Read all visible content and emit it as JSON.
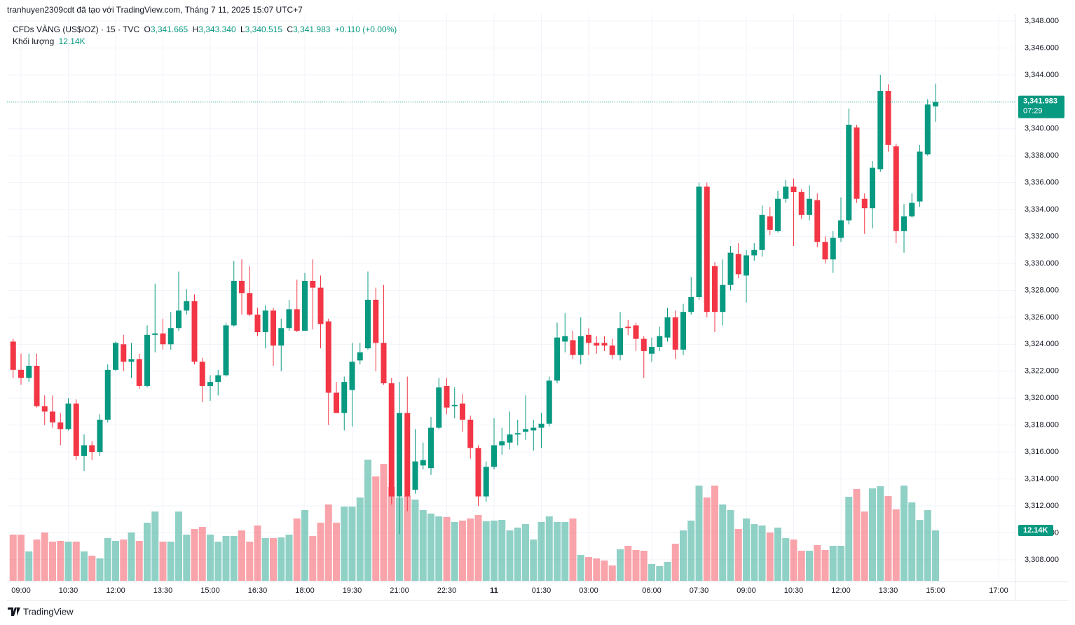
{
  "header": {
    "attribution": "tranhuyen2309cdt đã tạo với TradingView.com, Tháng 7 11, 2025 15:07 UTC+7"
  },
  "legend": {
    "symbol": "CFDs VÀNG (US$/OZ) · 15 · TVC",
    "o": "O",
    "open": "3,341.665",
    "h": "H",
    "high": "3,343.340",
    "l": "L",
    "low": "3,340.515",
    "c": "C",
    "close": "3,341.983",
    "change": "+0.110 (+0.00%)",
    "volume_title": "Khối lượng",
    "volume": "12.14K"
  },
  "footer": {
    "brand": "TradingView"
  },
  "chart_data": {
    "type": "candlestick",
    "up_color": "#089981",
    "down_color": "#f23645",
    "grid": true,
    "last_price_label": "3,341.983",
    "countdown": "07:29",
    "volume_label": "12.14K",
    "ylim": [
      3306.38,
      3348.52
    ],
    "yticks": [
      {
        "value": 3308,
        "label": "3,308.000"
      },
      {
        "value": 3310,
        "label": "3,310.000"
      },
      {
        "value": 3312,
        "label": "3,312.000"
      },
      {
        "value": 3314,
        "label": "3,314.000"
      },
      {
        "value": 3316,
        "label": "3,316.000"
      },
      {
        "value": 3318,
        "label": "3,318.000"
      },
      {
        "value": 3320,
        "label": "3,320.000"
      },
      {
        "value": 3322,
        "label": "3,322.000"
      },
      {
        "value": 3324,
        "label": "3,324.000"
      },
      {
        "value": 3326,
        "label": "3,326.000"
      },
      {
        "value": 3328,
        "label": "3,328.000"
      },
      {
        "value": 3330,
        "label": "3,330.000"
      },
      {
        "value": 3332,
        "label": "3,332.000"
      },
      {
        "value": 3334,
        "label": "3,334.000"
      },
      {
        "value": 3336,
        "label": "3,336.000"
      },
      {
        "value": 3338,
        "label": "3,338.000"
      },
      {
        "value": 3340,
        "label": "3,340.000"
      },
      {
        "value": 3342,
        "label": "3,342.000"
      },
      {
        "value": 3344,
        "label": "3,344.000"
      },
      {
        "value": 3346,
        "label": "3,346.000"
      },
      {
        "value": 3348,
        "label": "3,348.000"
      }
    ],
    "volume_ylim": [
      0,
      136.4
    ],
    "categories": [
      null,
      "09:00",
      null,
      null,
      null,
      null,
      null,
      "10:30",
      null,
      null,
      null,
      null,
      null,
      "12:00",
      null,
      null,
      null,
      null,
      null,
      "13:30",
      null,
      null,
      null,
      null,
      null,
      "15:00",
      null,
      null,
      null,
      null,
      null,
      "16:30",
      null,
      null,
      null,
      null,
      null,
      "18:00",
      null,
      null,
      null,
      null,
      null,
      "19:30",
      null,
      null,
      null,
      null,
      null,
      "21:00",
      null,
      null,
      null,
      null,
      null,
      "22:30",
      null,
      null,
      null,
      null,
      null,
      "11",
      null,
      null,
      null,
      null,
      null,
      "01:30",
      null,
      null,
      null,
      null,
      null,
      "03:00",
      null,
      null,
      null,
      null,
      null,
      null,
      null,
      "06:00",
      null,
      null,
      null,
      null,
      null,
      "07:30",
      null,
      null,
      null,
      null,
      null,
      "09:00",
      null,
      null,
      null,
      null,
      null,
      "10:30",
      null,
      null,
      null,
      null,
      null,
      "12:00",
      null,
      null,
      null,
      null,
      null,
      "13:30",
      null,
      null,
      null,
      null,
      null,
      "15:00",
      null,
      null,
      null,
      null,
      null,
      null,
      null,
      "17:00"
    ],
    "open": [
      3324.2,
      3322.1,
      3321.5,
      3322.4,
      3319.4,
      3319.0,
      3318.2,
      3317.7,
      3319.6,
      3315.7,
      3316.5,
      3316.0,
      3318.4,
      3322.1,
      3324.0,
      3322.7,
      3322.9,
      3320.9,
      3324.7,
      3324.8,
      3324.0,
      3325.2,
      3326.5,
      3327.2,
      3322.7,
      3320.9,
      3321.2,
      3321.7,
      3325.4,
      3328.7,
      3327.8,
      3326.2,
      3324.9,
      3326.5,
      3323.9,
      3325.2,
      3326.6,
      3325.0,
      3328.7,
      3328.2,
      3325.7,
      3320.4,
      3318.9,
      3320.6,
      3322.8,
      3323.7,
      3327.3,
      3324.1,
      3321.1,
      3312.7,
      3318.9,
      3313.2,
      3315.0,
      3314.8,
      3317.8,
      3320.9,
      3319.4,
      3319.6,
      3318.4,
      3316.3,
      3312.7,
      3314.9,
      3316.5,
      3316.7,
      3317.3,
      3317.5,
      3317.6,
      3317.8,
      3318.1,
      3321.3,
      3324.2,
      3324.3,
      3323.2,
      3324.7,
      3324.1,
      3324.1,
      3323.9,
      3323.2,
      3325.3,
      3325.4,
      3324.4,
      3323.3,
      3323.8,
      3324.5,
      3326.0,
      3323.6,
      3326.4,
      3327.5,
      3335.7,
      3329.8,
      3326.4,
      3328.4,
      3330.7,
      3329.1,
      3330.6,
      3331.0,
      3333.5,
      3332.4,
      3334.8,
      3335.7,
      3335.3,
      3333.6,
      3334.7,
      3331.6,
      3330.3,
      3331.9,
      3333.2,
      3340.1,
      3334.8,
      3334.1,
      3337.0,
      3342.8,
      3338.7,
      3332.4,
      3333.5,
      3334.6,
      3338.1,
      3341.665,
      null,
      null,
      null,
      null,
      null,
      null,
      null,
      null
    ],
    "high": [
      3324.4,
      3323.3,
      3323.3,
      3323.3,
      3320.2,
      3320.2,
      3318.9,
      3320.0,
      3319.9,
      3317.3,
      3316.8,
      3318.8,
      3322.5,
      3324.2,
      3324.7,
      3324.1,
      3323.3,
      3325.4,
      3328.5,
      3325.9,
      3326.4,
      3329.4,
      3328.1,
      3327.7,
      3323.0,
      3321.7,
      3322.1,
      3325.6,
      3330.2,
      3330.3,
      3329.8,
      3326.7,
      3326.9,
      3326.7,
      3325.9,
      3327.3,
      3328.8,
      3329.3,
      3330.3,
      3329.1,
      3325.9,
      3321.2,
      3321.6,
      3324.1,
      3324.1,
      3329.4,
      3328.2,
      3328.4,
      3321.5,
      3321.2,
      3321.6,
      3317.7,
      3316.7,
      3318.6,
      3321.5,
      3321.5,
      3320.8,
      3320.3,
      3318.7,
      3316.5,
      3315.3,
      3318.5,
      3317.8,
      3319.0,
      3318.4,
      3320.2,
      3318.4,
      3318.9,
      3321.6,
      3325.6,
      3326.3,
      3325.0,
      3326.0,
      3325.2,
      3324.6,
      3324.6,
      3324.4,
      3326.4,
      3325.8,
      3325.6,
      3324.6,
      3324.5,
      3325.3,
      3326.7,
      3326.5,
      3327.0,
      3329.0,
      3336.0,
      3336.0,
      3330.1,
      3330.3,
      3331.3,
      3331.5,
      3331.0,
      3331.5,
      3334.3,
      3334.2,
      3335.4,
      3336.2,
      3336.3,
      3335.5,
      3335.8,
      3335.2,
      3332.0,
      3332.4,
      3334.9,
      3341.5,
      3340.3,
      3335.2,
      3337.6,
      3344.0,
      3343.3,
      3338.9,
      3334.4,
      3335.2,
      3338.8,
      3342.2,
      3343.34,
      null,
      null,
      null,
      null,
      null,
      null,
      null,
      null
    ],
    "low": [
      3321.5,
      3321.0,
      3321.2,
      3319.3,
      3318.0,
      3317.8,
      3316.5,
      3317.6,
      3315.4,
      3314.6,
      3315.4,
      3315.7,
      3318.2,
      3322.0,
      3322.0,
      3321.5,
      3320.7,
      3320.8,
      3323.4,
      3323.6,
      3323.6,
      3325.0,
      3326.2,
      3322.5,
      3319.7,
      3319.8,
      3320.2,
      3321.6,
      3325.3,
      3326.2,
      3326.1,
      3324.6,
      3323.7,
      3322.4,
      3322.0,
      3325.0,
      3324.9,
      3325.0,
      3325.1,
      3323.7,
      3318.0,
      3318.9,
      3317.6,
      3317.9,
      3322.5,
      3323.6,
      3322.0,
      3321.0,
      3312.1,
      3309.9,
      3311.6,
      3312.9,
      3314.7,
      3314.3,
      3317.7,
      3318.8,
      3318.5,
      3317.5,
      3315.5,
      3312.0,
      3312.3,
      3314.7,
      3315.8,
      3316.2,
      3316.5,
      3316.9,
      3316.1,
      3316.3,
      3317.9,
      3321.1,
      3323.4,
      3322.9,
      3322.5,
      3323.2,
      3323.3,
      3323.5,
      3322.9,
      3322.8,
      3324.7,
      3323.5,
      3321.5,
      3322.7,
      3323.5,
      3324.2,
      3322.9,
      3323.2,
      3326.2,
      3327.3,
      3326.0,
      3324.9,
      3325.4,
      3328.0,
      3328.9,
      3327.1,
      3330.2,
      3330.5,
      3332.1,
      3332.3,
      3334.5,
      3331.3,
      3333.3,
      3333.2,
      3331.2,
      3330.0,
      3329.3,
      3331.6,
      3332.9,
      3334.5,
      3332.2,
      3332.6,
      3336.8,
      3338.3,
      3331.5,
      3330.8,
      3333.4,
      3334.2,
      3338.0,
      3340.515,
      null,
      null,
      null,
      null,
      null,
      null,
      null,
      null
    ],
    "close": [
      3322.1,
      3321.5,
      3322.4,
      3319.4,
      3319.0,
      3318.2,
      3317.7,
      3319.6,
      3315.7,
      3316.5,
      3316.0,
      3318.4,
      3322.1,
      3324.1,
      3322.7,
      3322.9,
      3320.9,
      3324.7,
      3324.8,
      3324.0,
      3325.2,
      3326.5,
      3327.2,
      3322.7,
      3320.9,
      3321.2,
      3321.7,
      3325.4,
      3328.7,
      3327.8,
      3326.2,
      3324.9,
      3326.5,
      3323.9,
      3325.2,
      3326.6,
      3325.0,
      3328.7,
      3328.2,
      3325.5,
      3320.4,
      3318.9,
      3321.2,
      3322.7,
      3323.4,
      3327.3,
      3324.1,
      3321.1,
      3312.7,
      3318.9,
      3312.7,
      3315.3,
      3315.4,
      3317.8,
      3320.8,
      3319.3,
      3319.5,
      3318.4,
      3316.3,
      3312.7,
      3314.9,
      3316.5,
      3316.8,
      3317.3,
      3317.4,
      3317.7,
      3317.8,
      3318.1,
      3321.3,
      3324.5,
      3324.6,
      3323.2,
      3324.6,
      3324.1,
      3323.9,
      3323.9,
      3323.2,
      3325.2,
      3325.2,
      3324.4,
      3323.5,
      3323.8,
      3324.6,
      3326.0,
      3323.6,
      3326.4,
      3327.5,
      3335.7,
      3326.4,
      3326.4,
      3328.4,
      3330.8,
      3329.2,
      3330.6,
      3331.0,
      3333.6,
      3332.5,
      3334.8,
      3335.7,
      3335.3,
      3333.6,
      3334.8,
      3331.6,
      3330.3,
      3331.9,
      3333.2,
      3340.3,
      3334.8,
      3334.1,
      3337.1,
      3342.8,
      3338.8,
      3332.4,
      3333.5,
      3334.5,
      3338.3,
      3341.8,
      3341.983,
      null,
      null,
      null,
      null,
      null,
      null,
      null,
      null
    ],
    "volume": [
      11.13,
      11.13,
      7.08,
      9.95,
      11.64,
      9.44,
      9.61,
      9.44,
      9.44,
      7.08,
      6.07,
      5.4,
      10.29,
      9.61,
      9.95,
      11.64,
      9.61,
      14.0,
      16.69,
      9.44,
      9.44,
      16.69,
      11.13,
      12.48,
      12.98,
      11.13,
      9.44,
      10.79,
      10.79,
      12.14,
      9.44,
      13.32,
      10.29,
      10.29,
      10.46,
      11.13,
      15.01,
      17.03,
      10.79,
      14.0,
      18.38,
      14.0,
      17.88,
      17.88,
      20.07,
      29.17,
      25.13,
      28.16,
      22.6,
      20.07,
      20.4,
      19.56,
      17.03,
      16.19,
      15.51,
      15.35,
      14.17,
      14.5,
      15.01,
      15.85,
      14.33,
      14.5,
      14.67,
      12.14,
      12.82,
      13.66,
      9.95,
      14.17,
      15.51,
      14.17,
      14.17,
      15.01,
      6.24,
      5.73,
      5.4,
      4.89,
      3.71,
      7.59,
      8.43,
      7.42,
      7.25,
      4.05,
      3.54,
      4.55,
      8.94,
      12.14,
      14.5,
      22.93,
      20.07,
      22.93,
      18.38,
      17.03,
      12.48,
      15.01,
      13.66,
      13.32,
      11.64,
      12.82,
      10.29,
      9.95,
      7.25,
      7.25,
      8.6,
      7.42,
      8.43,
      8.43,
      20.24,
      22.09,
      16.69,
      22.26,
      22.77,
      20.4,
      17.2,
      22.93,
      18.89,
      14.67,
      17.03,
      12.14,
      null,
      null,
      null,
      null,
      null,
      null,
      null,
      null
    ]
  }
}
